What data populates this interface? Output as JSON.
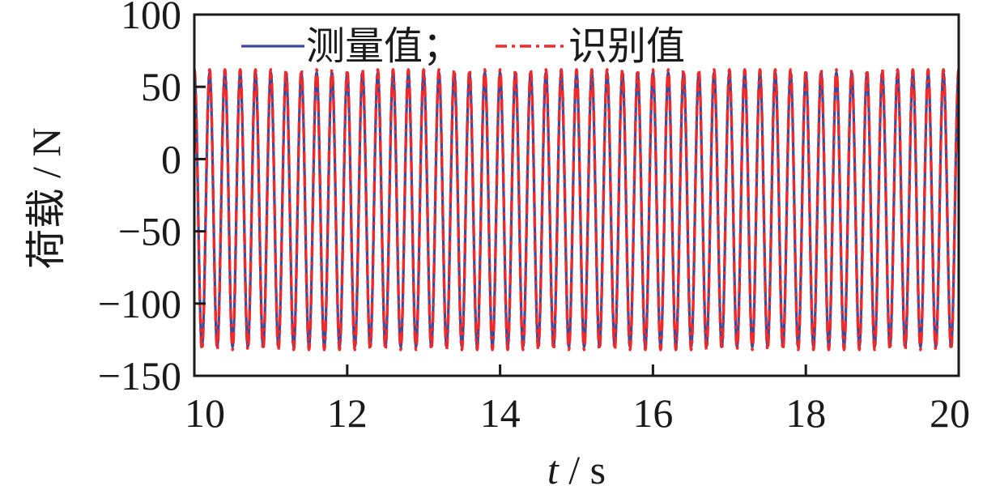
{
  "chart_data": {
    "type": "line",
    "xlabel_italic": "t",
    "xlabel_rest": " / s",
    "ylabel": "荷载 / N",
    "xlim": [
      10,
      20
    ],
    "ylim": [
      -150,
      100
    ],
    "xticks": [
      10,
      12,
      14,
      16,
      18,
      20
    ],
    "yticks": [
      100,
      50,
      0,
      -50,
      -100,
      -150
    ],
    "ytick_labels": [
      "100",
      "50",
      "0",
      "−50",
      "−100",
      "−150"
    ],
    "grid": false,
    "legend_position": "top",
    "series": [
      {
        "name": "测量值；",
        "color": "#3b4a9e",
        "style": "solid",
        "signal": {
          "mean": -35,
          "amplitude": 95,
          "frequency_hz": 5,
          "t_start": 10,
          "t_end": 20
        }
      },
      {
        "name": "识别值",
        "color": "#ee2a2a",
        "style": "dash-dot",
        "signal": {
          "mean": -35,
          "amplitude": 97,
          "frequency_hz": 5,
          "t_start": 10,
          "t_end": 20
        }
      }
    ]
  }
}
